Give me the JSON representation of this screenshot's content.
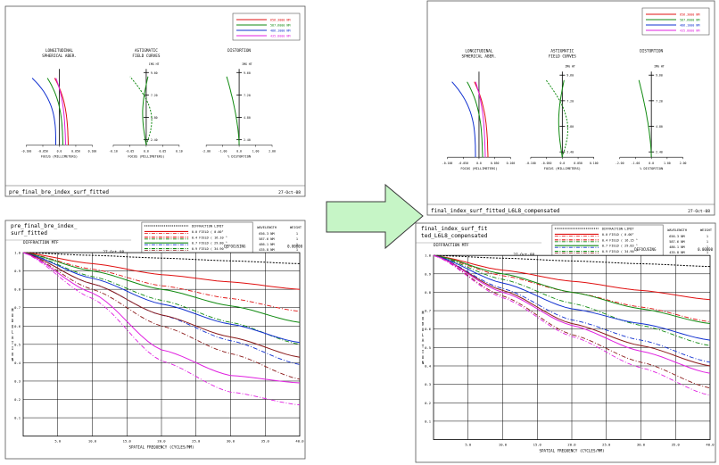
{
  "left": {
    "aberr": {
      "legend": [
        "656.3000 NM",
        "587.6000 NM",
        "486.1000 NM",
        "435.8000 NM"
      ],
      "longitudinal": {
        "title": [
          "LONGITUDINAL",
          "SPHERICAL ABER."
        ],
        "xticks": [
          "-0.100",
          "-0.050",
          "0.0",
          "0.050",
          "0.100"
        ],
        "xlabel": "FOCUS (MILLIMETERS)"
      },
      "astigmatic": {
        "title": [
          "ASTIGMATIC",
          "FIELD CURVES"
        ],
        "unit": "IMG HT",
        "yticks": [
          "9.60",
          "7.20",
          "4.80",
          "2.40"
        ],
        "xticks": [
          "-0.10",
          "-0.05",
          "0.0",
          "0.05",
          "0.10"
        ],
        "xlabel": "FOCUS (MILLIMETERS)"
      },
      "distortion": {
        "title": [
          "DISTORTION"
        ],
        "unit": "IMG HT",
        "yticks": [
          "9.60",
          "7.20",
          "4.80",
          "2.40"
        ],
        "xticks": [
          "-2.00",
          "-1.00",
          "0.0",
          "1.00",
          "2.00"
        ],
        "xlabel": "% DISTORTION"
      },
      "footer_name": "pre_final_bre_index_surf_fitted",
      "footer_date": "27-Oct-08"
    },
    "mtf": {
      "name_lines": [
        "pre_final_bre_index_",
        "surf_fitted"
      ],
      "subtitle": "DIFFRACTION MTF",
      "date": "27-Oct-08",
      "legend_rows": [
        "DIFFRACTION LIMIT",
        "0.0  FIELD (  0.00°",
        "0.4  FIELD ( 16.10 °",
        "0.7  FIELD ( 29.80 °",
        "0.9  FIELD ( 34.90 °",
        "1.0  FIELD ( 38.25 °"
      ],
      "wl_header": [
        "WAVELENGTH",
        "WEIGHT"
      ],
      "wl_rows": [
        [
          "656.3 NM",
          "1"
        ],
        [
          "587.6 NM",
          "1"
        ],
        [
          "486.1 NM",
          "1"
        ],
        [
          "435.8 NM",
          "1"
        ]
      ],
      "defocus_label": "DEFOCUSING",
      "defocus_value": "0.00000",
      "yticks": [
        "1.0",
        "0.9",
        "0.8",
        "0.7",
        "0.6",
        "0.5",
        "0.4",
        "0.3",
        "0.2",
        "0.1"
      ],
      "xticks": [
        "5.0",
        "10.0",
        "15.0",
        "20.0",
        "25.0",
        "30.0",
        "35.0",
        "40.0"
      ],
      "xlabel": "SPATIAL FREQUENCY (CYCLES/MM)",
      "ylabel": "MODULATION"
    }
  },
  "arrow": {
    "color": "#c6f5c6",
    "stroke": "#3a3a3a"
  },
  "right": {
    "aberr": {
      "legend": [
        "656.3000 NM",
        "587.6000 NM",
        "486.1000 NM",
        "435.8000 NM"
      ],
      "longitudinal": {
        "title": [
          "LONGITUDINAL",
          "SPHERICAL ABER."
        ],
        "xticks": [
          "-0.100",
          "-0.050",
          "0.0",
          "0.050",
          "0.100"
        ],
        "xlabel": "FOCUS (MILLIMETERS)"
      },
      "astigmatic": {
        "title": [
          "ASTIGMATIC",
          "FIELD CURVES"
        ],
        "unit": "IMG HT",
        "yticks": [
          "9.60",
          "7.20",
          "4.80",
          "2.40"
        ],
        "xticks": [
          "-0.100",
          "-0.050",
          "0.0",
          "0.050",
          "0.100"
        ],
        "xlabel": "FOCUS (MILLIMETERS)"
      },
      "distortion": {
        "title": [
          "DISTORTION"
        ],
        "unit": "IMG HT",
        "yticks": [
          "9.60",
          "7.20",
          "4.80",
          "2.40"
        ],
        "xticks": [
          "-2.00",
          "-1.00",
          "0.0",
          "1.00",
          "2.00"
        ],
        "xlabel": "% DISTORTION"
      },
      "footer_name": "final_index_surf_fitted_L6L8_compensated",
      "footer_date": "27-Oct-08"
    },
    "mtf": {
      "name_lines": [
        "final_index_surf_fit",
        "ted_L6L8_compensated"
      ],
      "subtitle": "DIFFRACTION MTF",
      "date": "27-Oct-08",
      "legend_rows": [
        "DIFFRACTION LIMIT",
        "0.0  FIELD (  0.00°",
        "0.4  FIELD ( 16.15 °",
        "0.7  FIELD ( 29.83 °",
        "0.9  FIELD ( 34.90 °",
        "1.0  FIELD ( 38.25 °"
      ],
      "wl_header": [
        "WAVELENGTH",
        "WEIGHT"
      ],
      "wl_rows": [
        [
          "656.3 NM",
          "1"
        ],
        [
          "587.6 NM",
          "1"
        ],
        [
          "486.1 NM",
          "1"
        ],
        [
          "435.8 NM",
          "1"
        ]
      ],
      "defocus_label": "DEFOCUSING",
      "defocus_value": "0.00000",
      "yticks": [
        "1.0",
        "0.9",
        "0.8",
        "0.7",
        "0.6",
        "0.5",
        "0.4",
        "0.3",
        "0.2",
        "0.1"
      ],
      "xticks": [
        "5.0",
        "10.0",
        "15.0",
        "20.0",
        "25.0",
        "30.0",
        "35.0",
        "40.0"
      ],
      "xlabel": "SPATIAL FREQUENCY (CYCLES/MM)",
      "ylabel": "MODULATION"
    }
  },
  "colors": {
    "red": "#e01010",
    "green": "#108a10",
    "blue": "#1030d0",
    "magenta": "#e020e0",
    "brown": "#8b1a1a",
    "black": "#000000"
  },
  "chart_data": [
    {
      "type": "line",
      "panel": "left-mtf",
      "xlabel": "SPATIAL FREQUENCY (CYCLES/MM)",
      "ylabel": "MODULATION",
      "xlim": [
        0,
        40
      ],
      "ylim": [
        0,
        1
      ],
      "series": [
        {
          "name": "DIFFRACTION LIMIT",
          "style": "dashed",
          "color": "#000000",
          "x": [
            0,
            10,
            20,
            30,
            40
          ],
          "y": [
            1.0,
            0.985,
            0.97,
            0.955,
            0.94
          ]
        },
        {
          "name": "0.0 FIELD",
          "color": "#e01010",
          "x": [
            0,
            10,
            20,
            30,
            40
          ],
          "y": [
            1.0,
            0.94,
            0.88,
            0.84,
            0.8
          ]
        },
        {
          "name": "0.4 FIELD",
          "color": "#108a10",
          "x": [
            0,
            10,
            20,
            30,
            40
          ],
          "y": [
            1.0,
            0.9,
            0.8,
            0.71,
            0.62
          ]
        },
        {
          "name": "0.7 FIELD",
          "color": "#1030d0",
          "x": [
            0,
            10,
            20,
            30,
            40
          ],
          "y": [
            1.0,
            0.86,
            0.72,
            0.61,
            0.51
          ]
        },
        {
          "name": "0.9 FIELD",
          "color": "#8b1a1a",
          "x": [
            0,
            10,
            20,
            30,
            40
          ],
          "y": [
            1.0,
            0.83,
            0.66,
            0.54,
            0.43
          ]
        },
        {
          "name": "1.0 FIELD",
          "color": "#e020e0",
          "x": [
            0,
            10,
            20,
            30,
            40
          ],
          "y": [
            1.0,
            0.78,
            0.47,
            0.33,
            0.29
          ]
        }
      ]
    },
    {
      "type": "line",
      "panel": "right-mtf",
      "xlabel": "SPATIAL FREQUENCY (CYCLES/MM)",
      "ylabel": "MODULATION",
      "xlim": [
        0,
        40
      ],
      "ylim": [
        0,
        1
      ],
      "series": [
        {
          "name": "DIFFRACTION LIMIT",
          "style": "dashed",
          "color": "#000000",
          "x": [
            0,
            10,
            20,
            30,
            40
          ],
          "y": [
            1.0,
            0.985,
            0.97,
            0.955,
            0.94
          ]
        },
        {
          "name": "0.0 FIELD",
          "color": "#e01010",
          "x": [
            0,
            10,
            20,
            30,
            40
          ],
          "y": [
            1.0,
            0.92,
            0.86,
            0.81,
            0.76
          ]
        },
        {
          "name": "0.4 FIELD",
          "color": "#108a10",
          "x": [
            0,
            10,
            20,
            30,
            40
          ],
          "y": [
            1.0,
            0.9,
            0.8,
            0.71,
            0.63
          ]
        },
        {
          "name": "0.7 FIELD",
          "color": "#1030d0",
          "x": [
            0,
            10,
            20,
            30,
            40
          ],
          "y": [
            1.0,
            0.85,
            0.71,
            0.63,
            0.54
          ]
        },
        {
          "name": "0.9 FIELD",
          "color": "#8b1a1a",
          "x": [
            0,
            10,
            20,
            30,
            40
          ],
          "y": [
            1.0,
            0.81,
            0.63,
            0.51,
            0.4
          ]
        },
        {
          "name": "1.0 FIELD",
          "color": "#e020e0",
          "x": [
            0,
            10,
            20,
            30,
            40
          ],
          "y": [
            1.0,
            0.8,
            0.62,
            0.48,
            0.36
          ]
        }
      ]
    }
  ]
}
